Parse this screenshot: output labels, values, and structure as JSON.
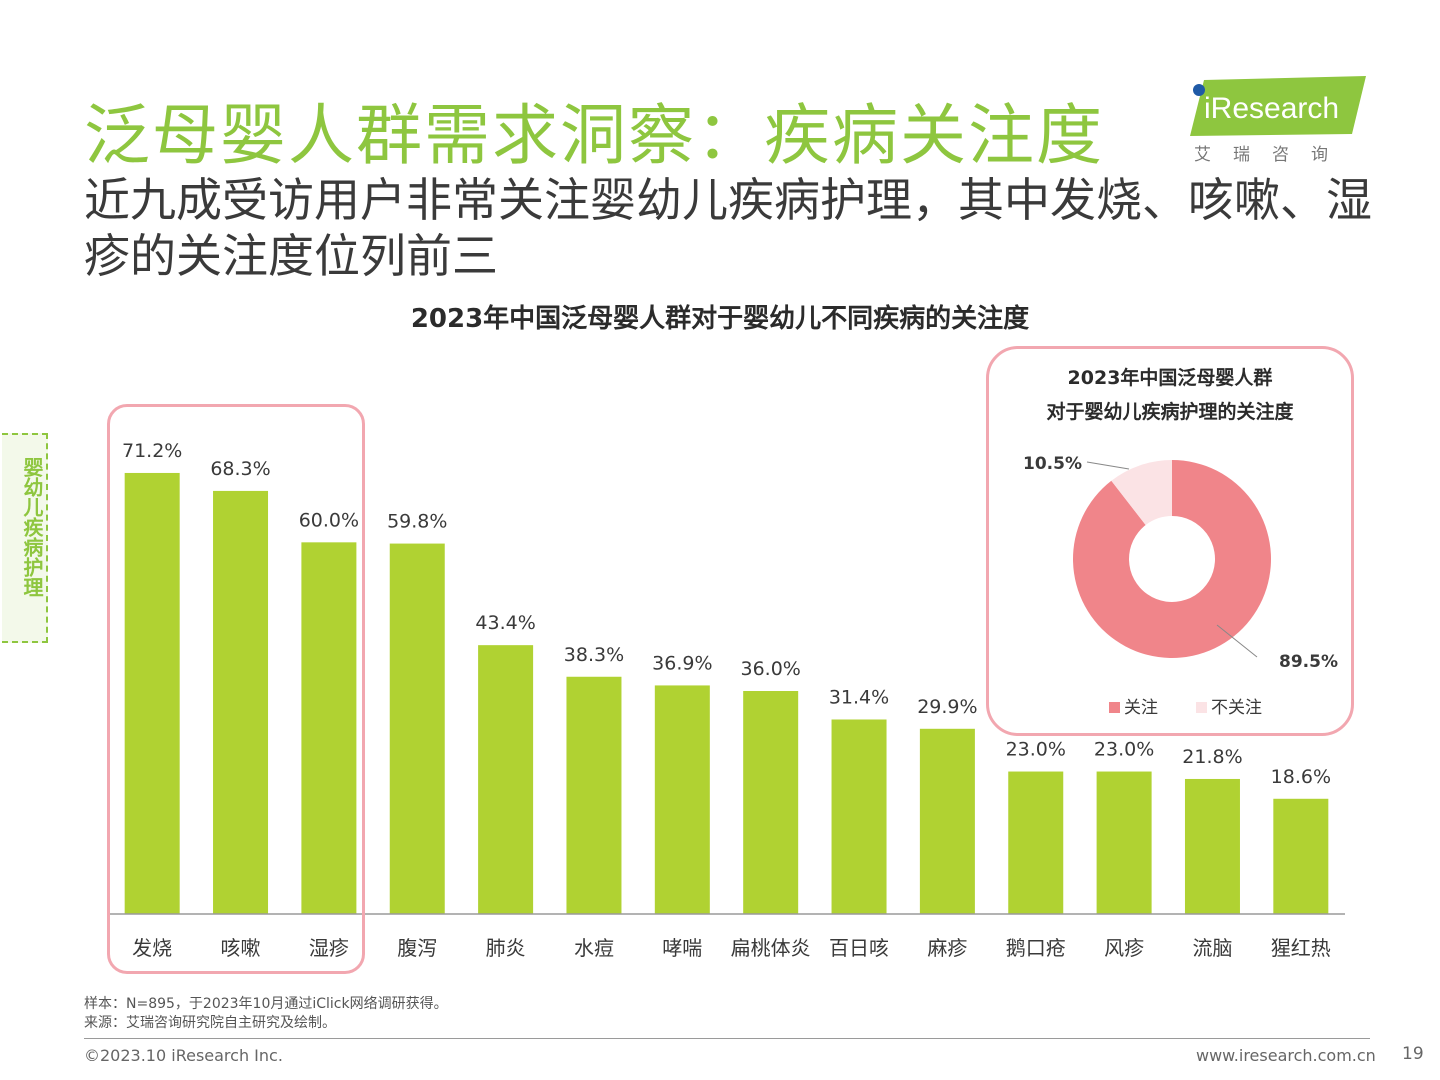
{
  "header": {
    "title": "泛母婴人群需求洞察：疾病关注度",
    "subtitle": "近九成受访用户非常关注婴幼儿疾病护理，其中发烧、咳嗽、湿疹的关注度位列前三",
    "logo_text": "iResearch",
    "logo_sub": "艾瑞咨询"
  },
  "side_label": "婴幼儿疾病护理",
  "colors": {
    "brand_green": "#8ec63f",
    "bar_green": "#b0d232",
    "pink": "#f2a7b0",
    "donut_main": "#f0858a",
    "donut_light": "#fbe3e5"
  },
  "chart_data": [
    {
      "type": "bar",
      "title": "2023年中国泛母婴人群对于婴幼儿不同疾病的关注度",
      "categories": [
        "发烧",
        "咳嗽",
        "湿疹",
        "腹泻",
        "肺炎",
        "水痘",
        "哮喘",
        "扁桃体炎",
        "百日咳",
        "麻疹",
        "鹅口疮",
        "风疹",
        "流脑",
        "猩红热"
      ],
      "values": [
        71.2,
        68.3,
        60.0,
        59.8,
        43.4,
        38.3,
        36.9,
        36.0,
        31.4,
        29.9,
        23.0,
        23.0,
        21.8,
        18.6
      ],
      "value_labels": [
        "71.2%",
        "68.3%",
        "60.0%",
        "59.8%",
        "43.4%",
        "38.3%",
        "36.9%",
        "36.0%",
        "31.4%",
        "29.9%",
        "23.0%",
        "23.0%",
        "21.8%",
        "18.6%"
      ],
      "unit": "%",
      "ylim": [
        0,
        72
      ],
      "highlighted": [
        "发烧",
        "咳嗽",
        "湿疹"
      ]
    },
    {
      "type": "pie",
      "title_line1": "2023年中国泛母婴人群",
      "title_line2": "对于婴幼儿疾病护理的关注度",
      "labels": [
        "关注",
        "不关注"
      ],
      "values": [
        89.5,
        10.5
      ],
      "value_labels": [
        "89.5%",
        "10.5%"
      ],
      "colors": [
        "#f0858a",
        "#fbe3e5"
      ],
      "legend": "bottom"
    }
  ],
  "footer": {
    "note_sample": "样本：N=895，于2023年10月通过iClick网络调研获得。",
    "note_source": "来源：艾瑞咨询研究院自主研究及绘制。",
    "copyright": "©2023.10 iResearch Inc.",
    "website": "www.iresearch.com.cn",
    "page_number": "19"
  }
}
